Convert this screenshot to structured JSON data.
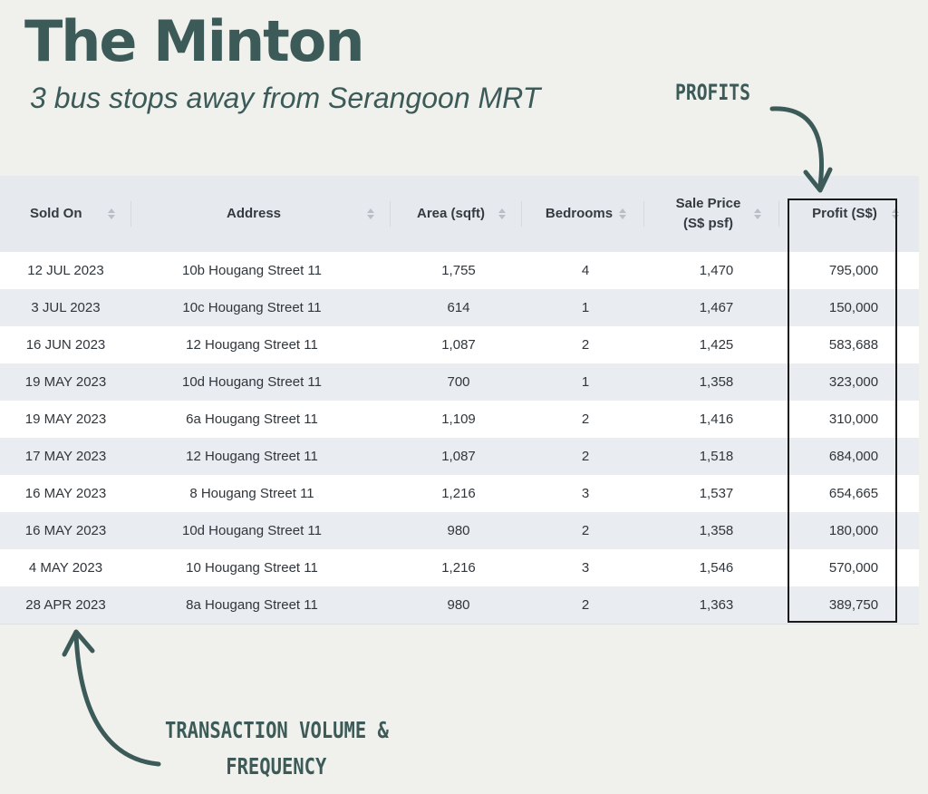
{
  "header": {
    "title": "The Minton",
    "subtitle": "3 bus stops away from Serangoon MRT"
  },
  "callouts": {
    "profits": "PROFITS",
    "volume_line1": "TRANSACTION VOLUME &",
    "volume_line2": "FREQUENCY"
  },
  "table": {
    "columns": [
      "Sold On",
      "Address",
      "Area (sqft)",
      "Bedrooms",
      "Sale Price (S$ psf)",
      "Profit (S$)"
    ],
    "sale_price_line1": "Sale Price",
    "sale_price_line2": "(S$ psf)",
    "rows": [
      [
        "12 JUL 2023",
        "10b Hougang Street 11",
        "1,755",
        "4",
        "1,470",
        "795,000"
      ],
      [
        "3 JUL 2023",
        "10c Hougang Street 11",
        "614",
        "1",
        "1,467",
        "150,000"
      ],
      [
        "16 JUN 2023",
        "12 Hougang Street 11",
        "1,087",
        "2",
        "1,425",
        "583,688"
      ],
      [
        "19 MAY 2023",
        "10d Hougang Street 11",
        "700",
        "1",
        "1,358",
        "323,000"
      ],
      [
        "19 MAY 2023",
        "6a Hougang Street 11",
        "1,109",
        "2",
        "1,416",
        "310,000"
      ],
      [
        "17 MAY 2023",
        "12 Hougang Street 11",
        "1,087",
        "2",
        "1,518",
        "684,000"
      ],
      [
        "16 MAY 2023",
        "8 Hougang Street 11",
        "1,216",
        "3",
        "1,537",
        "654,665"
      ],
      [
        "16 MAY 2023",
        "10d Hougang Street 11",
        "980",
        "2",
        "1,358",
        "180,000"
      ],
      [
        "4 MAY 2023",
        "10 Hougang Street 11",
        "1,216",
        "3",
        "1,546",
        "570,000"
      ],
      [
        "28 APR 2023",
        "8a Hougang Street 11",
        "980",
        "2",
        "1,363",
        "389,750"
      ]
    ]
  },
  "colors": {
    "brand": "#3c5b58",
    "background": "#f0f0ec",
    "header_row": "#e6eaee",
    "stripe": "#e9ecf0"
  },
  "icons": [
    "sort-icon",
    "arrow-icon"
  ]
}
